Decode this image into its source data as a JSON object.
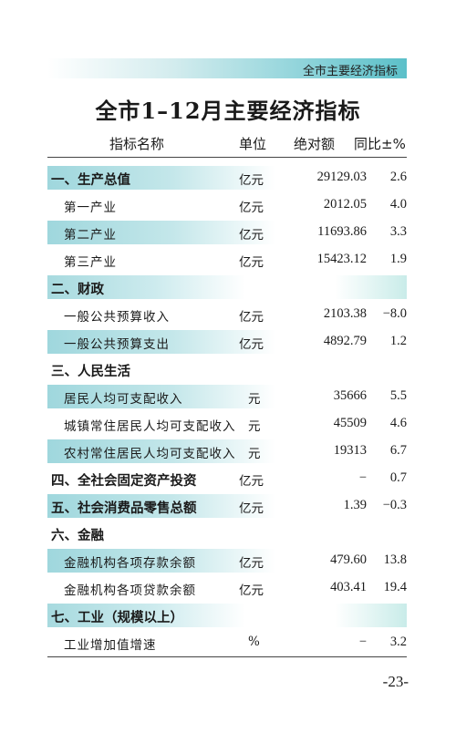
{
  "banner": {
    "label": "全市主要经济指标"
  },
  "title": "全市1–12月主要经济指标",
  "columns": {
    "name": "指标名称",
    "unit": "单位",
    "value": "绝对额",
    "growth": "同比±%"
  },
  "rows": [
    {
      "name": "一、生产总值",
      "unit": "亿元",
      "value": "29129.03",
      "growth": "2.6",
      "level": "cat",
      "shaded": true
    },
    {
      "name": "第一产业",
      "unit": "亿元",
      "value": "2012.05",
      "growth": "4.0",
      "level": "sub",
      "shaded": false
    },
    {
      "name": "第二产业",
      "unit": "亿元",
      "value": "11693.86",
      "growth": "3.3",
      "level": "sub",
      "shaded": true
    },
    {
      "name": "第三产业",
      "unit": "亿元",
      "value": "15423.12",
      "growth": "1.9",
      "level": "sub",
      "shaded": false
    },
    {
      "name": "二、财政",
      "unit": "",
      "value": "",
      "growth": "",
      "level": "cat",
      "shaded": "wide"
    },
    {
      "name": "一般公共预算收入",
      "unit": "亿元",
      "value": "2103.38",
      "growth": "−8.0",
      "level": "sub",
      "shaded": false
    },
    {
      "name": "一般公共预算支出",
      "unit": "亿元",
      "value": "4892.79",
      "growth": "1.2",
      "level": "sub",
      "shaded": true
    },
    {
      "name": "三、人民生活",
      "unit": "",
      "value": "",
      "growth": "",
      "level": "cat",
      "shaded": false
    },
    {
      "name": "居民人均可支配收入",
      "unit": "元",
      "value": "35666",
      "growth": "5.5",
      "level": "sub",
      "shaded": true
    },
    {
      "name": "城镇常住居民人均可支配收入",
      "unit": "元",
      "value": "45509",
      "growth": "4.6",
      "level": "sub",
      "shaded": false
    },
    {
      "name": "农村常住居民人均可支配收入",
      "unit": "元",
      "value": "19313",
      "growth": "6.7",
      "level": "sub",
      "shaded": true
    },
    {
      "name": "四、全社会固定资产投资",
      "unit": "亿元",
      "value": "−",
      "growth": "0.7",
      "level": "cat",
      "shaded": false
    },
    {
      "name": "五、社会消费品零售总额",
      "unit": "亿元",
      "value": "1.39",
      "growth": "−0.3",
      "level": "cat",
      "shaded": true
    },
    {
      "name": "六、金融",
      "unit": "",
      "value": "",
      "growth": "",
      "level": "cat",
      "shaded": false
    },
    {
      "name": "金融机构各项存款余额",
      "unit": "亿元",
      "value": "479.60",
      "growth": "13.8",
      "level": "sub",
      "shaded": true
    },
    {
      "name": "金融机构各项贷款余额",
      "unit": "亿元",
      "value": "403.41",
      "growth": "19.4",
      "level": "sub",
      "shaded": false
    },
    {
      "name": "七、工业（规模以上）",
      "unit": "",
      "value": "",
      "growth": "",
      "level": "cat",
      "shaded": "wide"
    },
    {
      "name": "工业增加值增速",
      "unit": "%",
      "value": "−",
      "growth": "3.2",
      "level": "sub",
      "shaded": false
    }
  ],
  "page_number": "-23-"
}
